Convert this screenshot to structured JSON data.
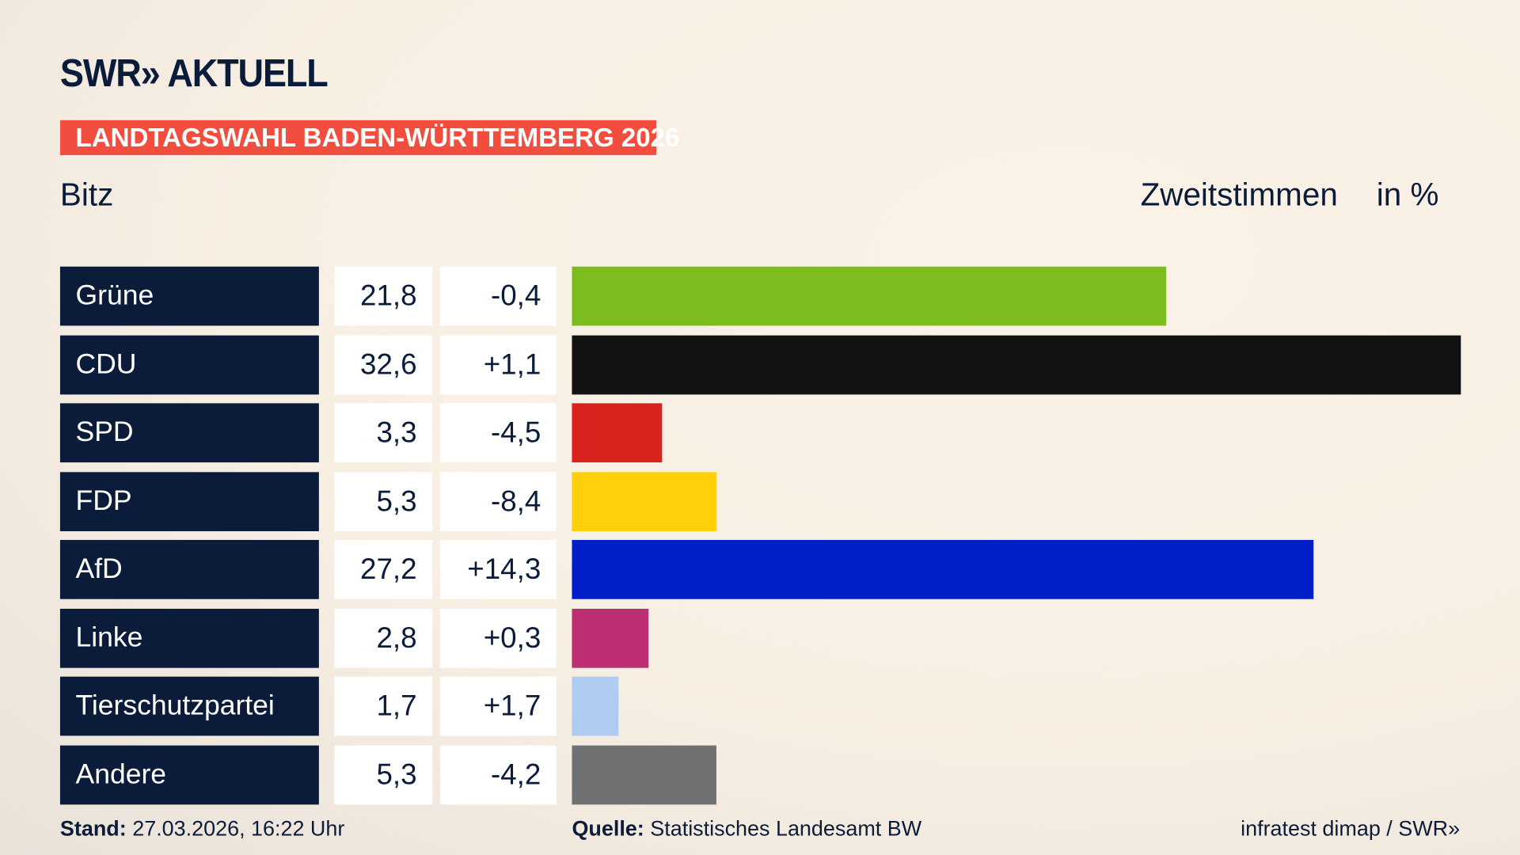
{
  "header": {
    "logo": "SWR» AKTUELL",
    "banner": "LANDTAGSWAHL BADEN-WÜRTTEMBERG 2026",
    "place": "Bitz",
    "vote_type": "Zweitstimmen",
    "unit": "in %"
  },
  "chart_data": {
    "type": "bar",
    "orientation": "horizontal",
    "categories": [
      "Grüne",
      "CDU",
      "SPD",
      "FDP",
      "AfD",
      "Linke",
      "Tierschutzpartei",
      "Andere"
    ],
    "values": [
      21.8,
      32.6,
      3.3,
      5.3,
      27.2,
      2.8,
      1.7,
      5.3
    ],
    "value_labels": [
      "21,8",
      "32,6",
      "3,3",
      "5,3",
      "27,2",
      "2,8",
      "1,7",
      "5,3"
    ],
    "diff_labels": [
      "-0,4",
      "+1,1",
      "-4,5",
      "-8,4",
      "+14,3",
      "+0,3",
      "+1,7",
      "-4,2"
    ],
    "colors": [
      "#7bbd1e",
      "#121212",
      "#d9211e",
      "#ffcf0a",
      "#001ec8",
      "#be2e72",
      "#aecbf0",
      "#6f7173"
    ]
  },
  "footer": {
    "stand_label": "Stand:",
    "stand_value": "27.03.2026, 16:22 Uhr",
    "source_label": "Quelle:",
    "source_value": "Statistisches Landesamt BW",
    "credit": "infratest dimap / SWR»"
  }
}
